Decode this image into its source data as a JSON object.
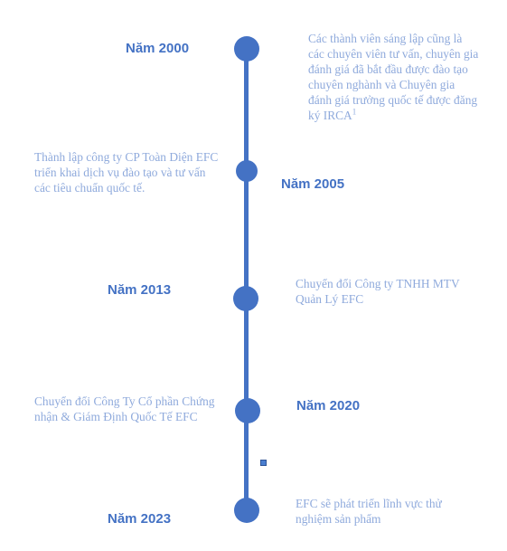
{
  "timeline": {
    "events": [
      {
        "year": "Năm 2000",
        "description": "Các thành viên sáng lập cũng là các chuyên viên tư vấn, chuyên gia đánh giá đã bắt đầu được đào tạo chuyên nghành và Chuyên gia đánh giá trưởng quốc tế được đăng ký IRCA",
        "footnote": "1"
      },
      {
        "year": "Năm 2005",
        "description": "Thành lập công ty CP Toàn Diện EFC triển khai dịch vụ đào tạo và tư vấn các tiêu chuẩn quốc tế."
      },
      {
        "year": "Năm 2013",
        "description": "Chuyển đổi Công ty TNHH MTV Quản Lý EFC"
      },
      {
        "year": "Năm 2020",
        "description": "Chuyển đổi Công Ty Cổ phần Chứng nhận & Giám Định Quốc Tế EFC"
      },
      {
        "year": "Năm 2023",
        "description": "EFC sẽ phát triển lĩnh vực thử nghiệm sản phẩm"
      }
    ],
    "colors": {
      "line": "#4472c4",
      "year_text": "#4472c4",
      "description_text": "#8faadc"
    }
  }
}
